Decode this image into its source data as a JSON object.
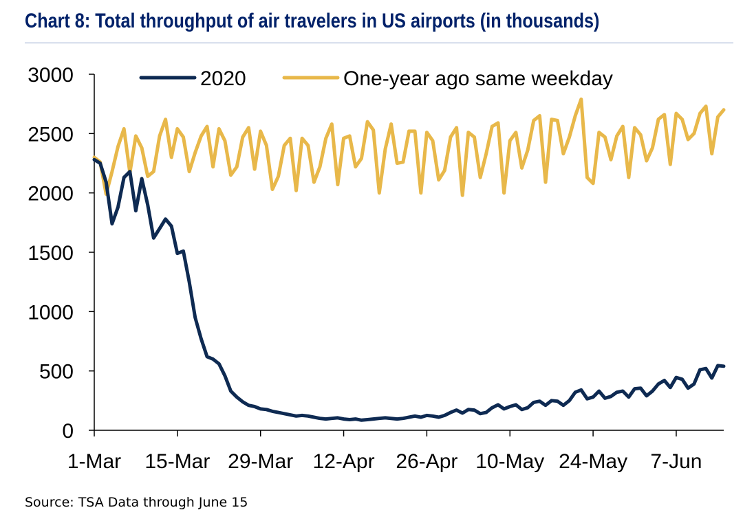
{
  "title": "Chart 8: Total throughput of air travelers in US airports (in thousands)",
  "source": "Source: TSA Data through June 15",
  "colors": {
    "title": "#012169",
    "series_2020": "#0e2a52",
    "series_prior": "#e8b84a"
  },
  "chart_data": {
    "type": "line",
    "title": "Chart 8: Total throughput of air travelers in US airports (in thousands)",
    "xlabel": "",
    "ylabel": "",
    "ylim": [
      0,
      3000
    ],
    "yticks": [
      0,
      500,
      1000,
      1500,
      2000,
      2500,
      3000
    ],
    "x_start": "2020-03-01",
    "x_tick_labels": [
      "1-Mar",
      "15-Mar",
      "29-Mar",
      "12-Apr",
      "26-Apr",
      "10-May",
      "24-May",
      "7-Jun"
    ],
    "x_tick_days": [
      0,
      14,
      28,
      42,
      56,
      70,
      84,
      98
    ],
    "grid": false,
    "legend_position": "top",
    "series": [
      {
        "name": "2020",
        "color": "#0e2a52",
        "values": [
          2280,
          2250,
          2090,
          1740,
          1880,
          2130,
          2180,
          1850,
          2120,
          1900,
          1620,
          1700,
          1780,
          1720,
          1490,
          1510,
          1250,
          950,
          770,
          620,
          600,
          560,
          460,
          330,
          280,
          240,
          210,
          200,
          180,
          175,
          160,
          150,
          140,
          130,
          120,
          125,
          120,
          110,
          100,
          95,
          100,
          105,
          95,
          90,
          95,
          85,
          90,
          95,
          100,
          105,
          100,
          95,
          100,
          110,
          120,
          110,
          125,
          120,
          110,
          125,
          150,
          170,
          145,
          175,
          170,
          140,
          150,
          190,
          215,
          180,
          200,
          215,
          175,
          190,
          235,
          245,
          210,
          250,
          245,
          210,
          250,
          320,
          340,
          265,
          280,
          330,
          270,
          285,
          320,
          330,
          280,
          350,
          355,
          290,
          330,
          390,
          420,
          360,
          445,
          430,
          355,
          390,
          510,
          520,
          440,
          545,
          540
        ]
      },
      {
        "name": "One-year ago same weekday",
        "color": "#e8b84a",
        "values": [
          2300,
          2260,
          1990,
          2180,
          2390,
          2540,
          2170,
          2480,
          2380,
          2140,
          2180,
          2480,
          2620,
          2300,
          2540,
          2470,
          2180,
          2340,
          2480,
          2560,
          2220,
          2540,
          2440,
          2150,
          2220,
          2470,
          2550,
          2200,
          2520,
          2400,
          2030,
          2140,
          2400,
          2460,
          2020,
          2460,
          2400,
          2090,
          2220,
          2460,
          2580,
          2070,
          2460,
          2480,
          2220,
          2290,
          2600,
          2530,
          2000,
          2370,
          2580,
          2250,
          2260,
          2520,
          2520,
          2000,
          2510,
          2440,
          2110,
          2190,
          2470,
          2550,
          1980,
          2510,
          2470,
          2130,
          2330,
          2560,
          2590,
          2000,
          2440,
          2510,
          2210,
          2360,
          2610,
          2650,
          2090,
          2620,
          2610,
          2330,
          2470,
          2650,
          2790,
          2130,
          2080,
          2510,
          2470,
          2280,
          2480,
          2560,
          2130,
          2550,
          2490,
          2270,
          2380,
          2620,
          2660,
          2240,
          2670,
          2620,
          2450,
          2500,
          2670,
          2730,
          2330,
          2640,
          2700
        ]
      }
    ]
  }
}
